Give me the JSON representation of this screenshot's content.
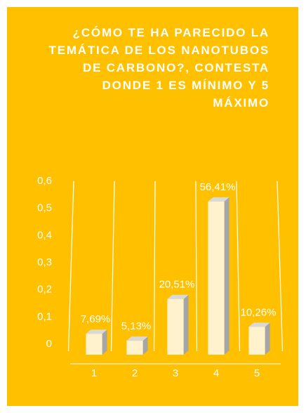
{
  "chart_data": {
    "type": "bar3d",
    "title": "¿CÓMO TE HA PARECIDO LA TEMÁTICA DE LOS NANOTUBOS DE CARBONO?, CONTESTA DONDE 1 ES MÍNIMO Y 5 MÁXIMO",
    "categories": [
      "1",
      "2",
      "3",
      "4",
      "5"
    ],
    "values": [
      0.0769,
      0.0513,
      0.2051,
      0.5641,
      0.1026
    ],
    "value_labels": [
      "7,69%",
      "5,13%",
      "20,51%",
      "56,41%",
      "10,26%"
    ],
    "color": "#fff2cc",
    "ylim": [
      0,
      0.6
    ],
    "yticks": [
      0,
      {
        "value": 0.1,
        "label": "0,1"
      },
      {
        "value": 0.2,
        "label": "0,2"
      },
      {
        "value": 0.3,
        "label": "0,3"
      },
      {
        "value": 0.4,
        "label": "0,4"
      },
      {
        "value": 0.5,
        "label": "0,5"
      },
      {
        "value": 0.6,
        "label": "0,6"
      }
    ],
    "grid": false
  }
}
